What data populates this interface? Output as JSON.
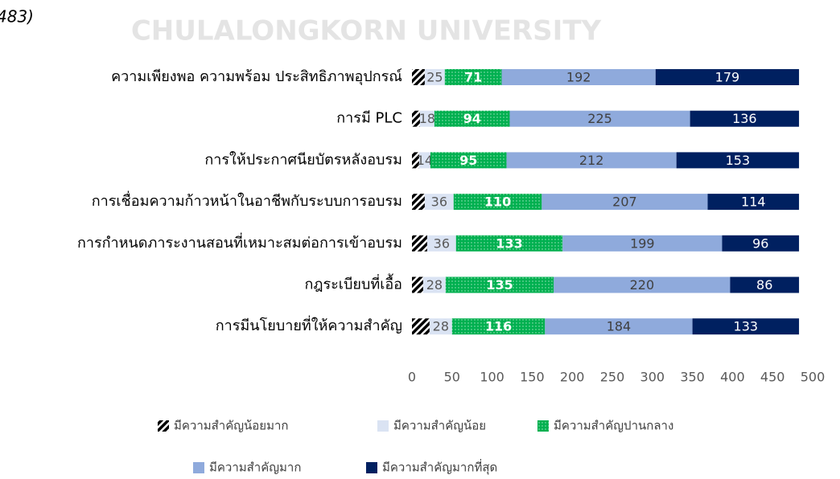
{
  "chart_data": {
    "type": "stacked_barh",
    "annotations": [
      "483)",
      "CHULALONGKORN UNIVERSITY"
    ],
    "categories": [
      "ความเพียงพอ ความพร้อม ประสิทธิภาพอุปกรณ์",
      "การมี PLC",
      "การให้ประกาศนียบัตรหลังอบรม",
      "การเชื่อมความก้าวหน้าในอาชีพกับระบบการอบรม",
      "การกำหนดภาระงานสอนที่เหมาะสมต่อการเข้าอบรม",
      "กฎระเบียบที่เอื้อ",
      "การมีนโยบายที่ให้ความสำคัญ"
    ],
    "series": [
      {
        "name": "มีความสำคัญน้อยมาก",
        "color": "#000000",
        "pattern": "hatch",
        "values": [
          16,
          10,
          9,
          16,
          19,
          14,
          22
        ]
      },
      {
        "name": "มีความสำคัญน้อย",
        "color": "#dae3f3",
        "label_color": "#595959",
        "values": [
          25,
          18,
          14,
          36,
          36,
          28,
          28
        ]
      },
      {
        "name": "มีความสำคัญปานกลาง",
        "color": "#00b050",
        "pattern": "dots",
        "label_color": "#ffffff",
        "values": [
          71,
          94,
          95,
          110,
          133,
          135,
          116
        ]
      },
      {
        "name": "มีความสำคัญมาก",
        "color": "#8faadc",
        "label_color": "#404040",
        "values": [
          192,
          225,
          212,
          207,
          199,
          220,
          184
        ]
      },
      {
        "name": "มีความสำคัญมากที่สุด",
        "color": "#002060",
        "label_color": "#ffffff",
        "values": [
          179,
          136,
          153,
          114,
          96,
          86,
          133
        ]
      }
    ],
    "labeled_series": [
      1,
      2,
      3,
      4
    ],
    "xlim": [
      0,
      500
    ],
    "xticks": [
      0,
      50,
      100,
      150,
      200,
      250,
      300,
      350,
      400,
      450,
      500
    ]
  }
}
